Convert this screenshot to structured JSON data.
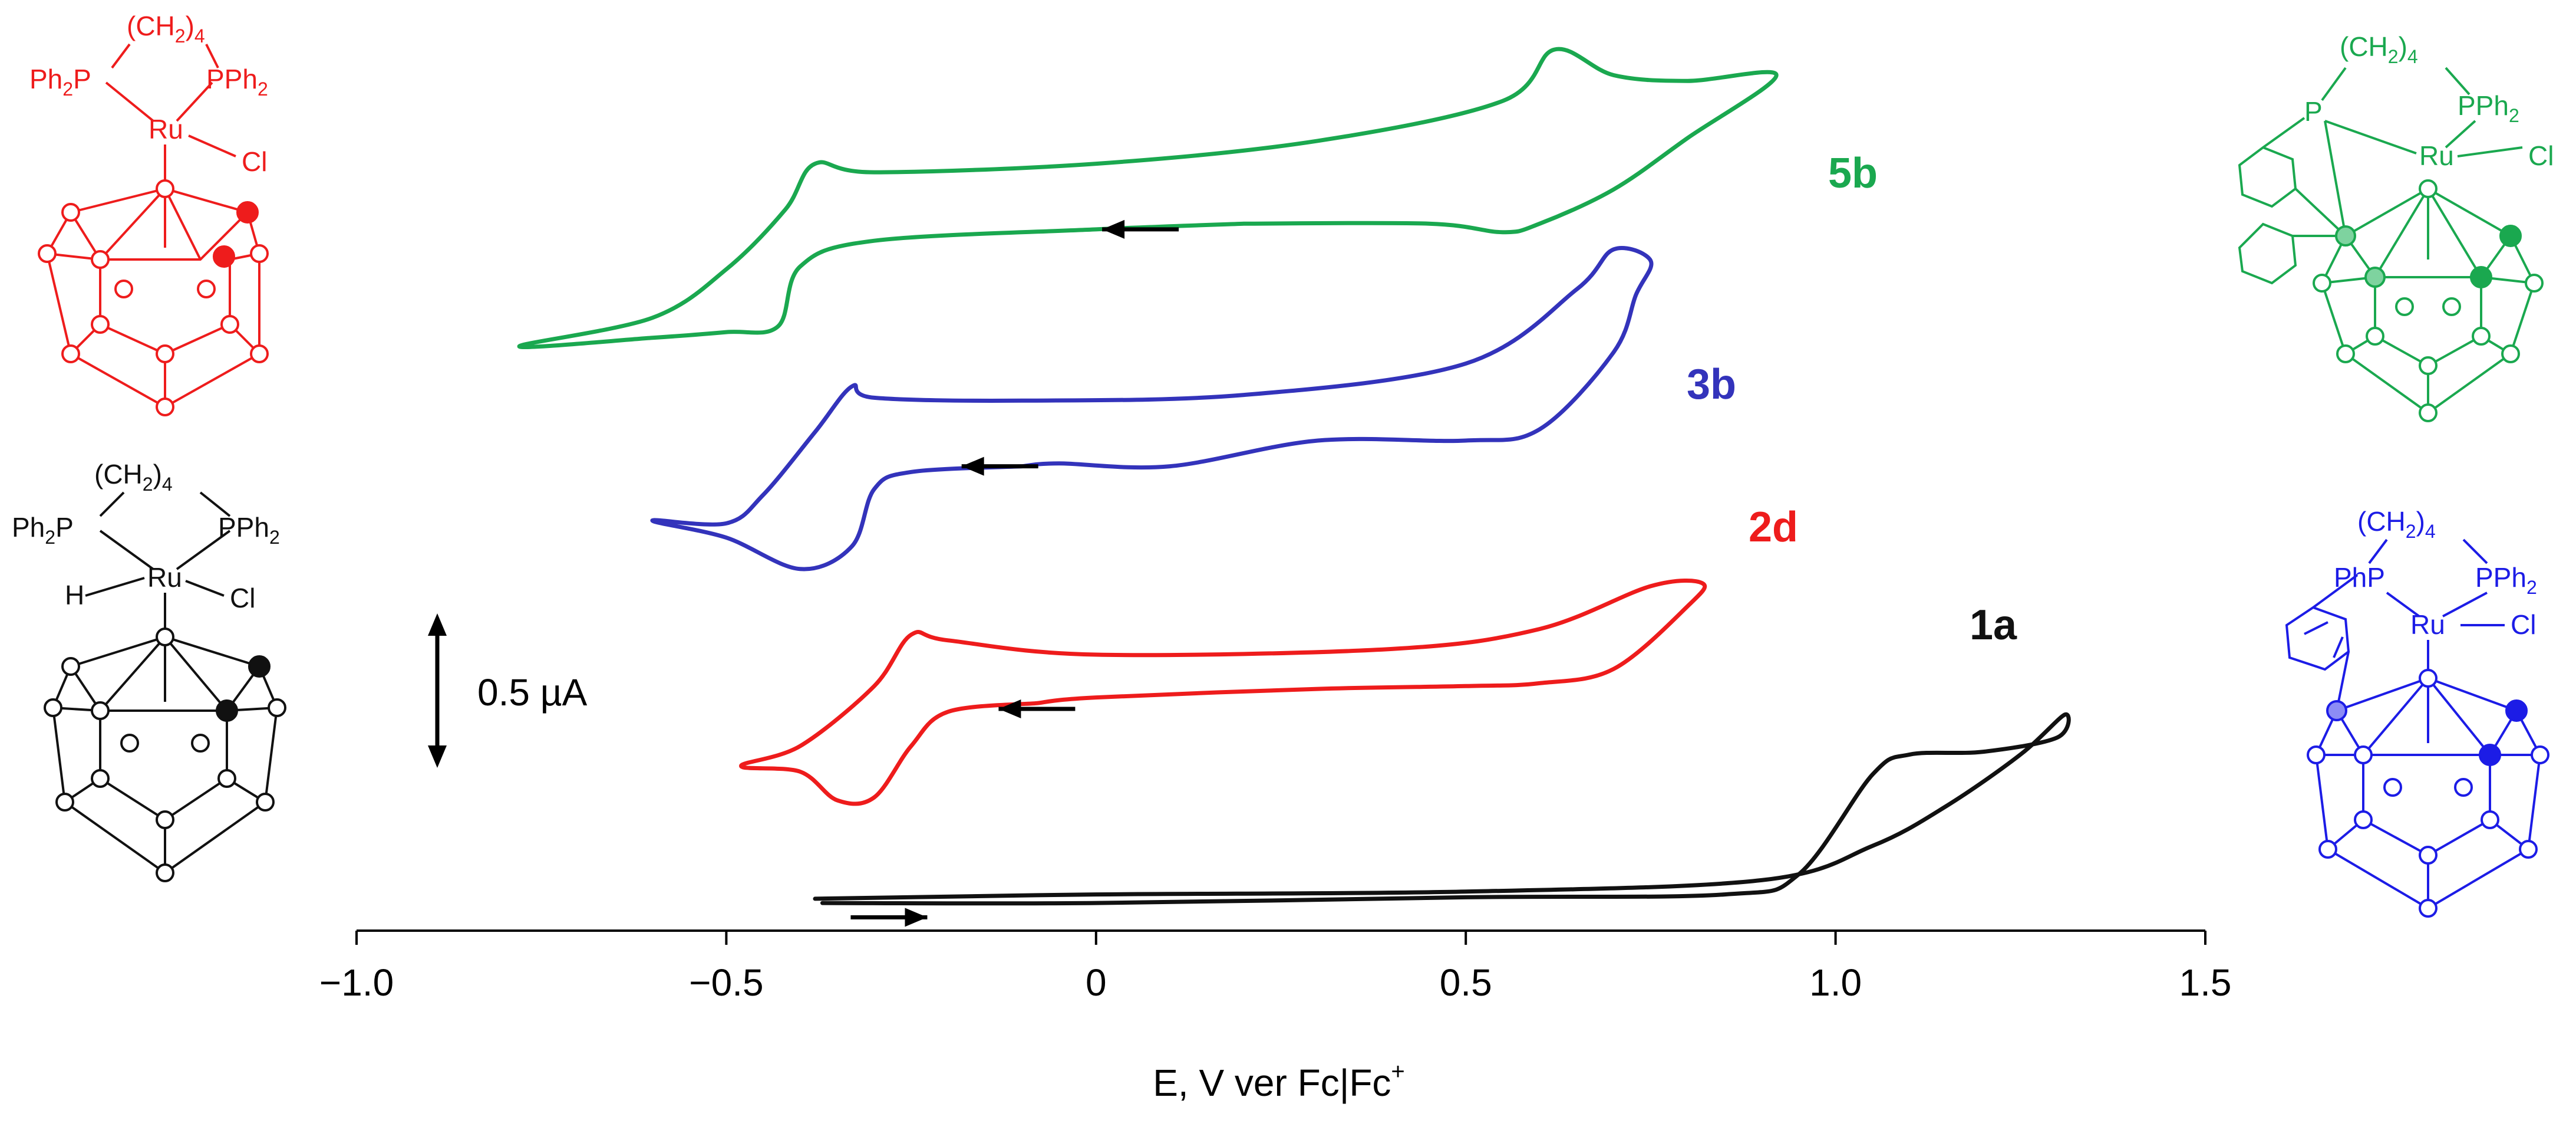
{
  "chart_data": {
    "type": "line",
    "title": "",
    "xlabel": "E, V ver Fc|Fc",
    "xlabel_superscript": "+",
    "ylabel": "",
    "xlim": [
      -1.0,
      1.5
    ],
    "xticks": [
      -1.0,
      -0.5,
      0,
      0.5,
      1.0,
      1.5
    ],
    "xtick_labels": [
      "−1.0",
      "−0.5",
      "0",
      "0.5",
      "1.0",
      "1.5"
    ],
    "scale_bar": {
      "label": "0.5 µA",
      "value_uA": 0.5
    },
    "series": [
      {
        "name": "5b",
        "color": "#1aa84f",
        "offset_uA": 2.2,
        "start_E": 0.2,
        "scan": "cathodic-first",
        "x": [
          0.2,
          0.0,
          -0.3,
          -0.4,
          -0.43,
          -0.5,
          -0.6,
          -0.78,
          -0.6,
          -0.5,
          -0.42,
          -0.38,
          -0.3,
          0.0,
          0.3,
          0.55,
          0.62,
          0.7,
          0.8,
          0.92,
          0.8,
          0.7,
          0.6,
          0.55,
          0.45,
          0.2
        ],
        "y": [
          0.0,
          -0.02,
          -0.06,
          -0.15,
          -0.36,
          -0.38,
          -0.4,
          -0.43,
          -0.33,
          -0.16,
          0.05,
          0.21,
          0.18,
          0.21,
          0.29,
          0.43,
          0.61,
          0.52,
          0.5,
          0.52,
          0.3,
          0.12,
          0.0,
          -0.03,
          0.0,
          0.0
        ]
      },
      {
        "name": "3b",
        "color": "#3333bb",
        "offset_uA": 1.35,
        "start_E": -0.1,
        "scan": "cathodic-first",
        "x": [
          -0.1,
          -0.25,
          -0.3,
          -0.33,
          -0.4,
          -0.5,
          -0.6,
          -0.5,
          -0.45,
          -0.38,
          -0.33,
          -0.3,
          -0.1,
          0.2,
          0.5,
          0.65,
          0.7,
          0.75,
          0.73,
          0.7,
          0.6,
          0.5,
          0.3,
          0.1,
          -0.05,
          -0.1
        ],
        "y": [
          0.0,
          -0.02,
          -0.08,
          -0.28,
          -0.36,
          -0.25,
          -0.19,
          -0.2,
          -0.1,
          0.12,
          0.28,
          0.24,
          0.23,
          0.25,
          0.36,
          0.62,
          0.76,
          0.72,
          0.6,
          0.4,
          0.13,
          0.09,
          0.09,
          0.0,
          0.01,
          0.0
        ]
      },
      {
        "name": "2d",
        "color": "#ee1c1c",
        "offset_uA": 0.52,
        "start_E": -0.08,
        "scan": "cathodic-first",
        "x": [
          -0.08,
          -0.2,
          -0.25,
          -0.3,
          -0.35,
          -0.4,
          -0.48,
          -0.4,
          -0.3,
          -0.25,
          -0.2,
          0.0,
          0.4,
          0.6,
          0.75,
          0.82,
          0.8,
          0.7,
          0.6,
          0.5,
          0.3,
          0.0,
          -0.08
        ],
        "y": [
          0.0,
          -0.03,
          -0.15,
          -0.33,
          -0.34,
          -0.24,
          -0.22,
          -0.15,
          0.06,
          0.24,
          0.22,
          0.17,
          0.19,
          0.26,
          0.41,
          0.42,
          0.34,
          0.12,
          0.07,
          0.06,
          0.05,
          0.02,
          0.0
        ]
      },
      {
        "name": "1a",
        "color": "#111111",
        "offset_uA": -0.18,
        "start_E": -0.37,
        "scan": "anodic-first",
        "x": [
          -0.37,
          0.0,
          0.5,
          0.85,
          0.95,
          1.05,
          1.1,
          1.2,
          1.3,
          1.31,
          1.25,
          1.15,
          1.05,
          0.9,
          0.5,
          0.0,
          -0.38
        ],
        "y": [
          0.0,
          0.0,
          0.02,
          0.03,
          0.1,
          0.45,
          0.52,
          0.53,
          0.58,
          0.66,
          0.52,
          0.34,
          0.2,
          0.08,
          0.04,
          0.03,
          0.015
        ]
      }
    ],
    "direction_arrows": [
      {
        "series": "5b",
        "x": 0.06,
        "y_uA": 2.18,
        "direction": "left"
      },
      {
        "series": "3b",
        "x": -0.13,
        "y_uA": 1.35,
        "direction": "left"
      },
      {
        "series": "2d",
        "x": -0.08,
        "y_uA": 0.5,
        "direction": "left"
      },
      {
        "series": "1a",
        "x": -0.28,
        "y_uA": -0.23,
        "direction": "right"
      }
    ]
  },
  "structures": {
    "red": {
      "color": "#ee1c1c",
      "labels": {
        "ch2": "(CH",
        "ch2sub": "2",
        "ch2close": ")",
        "n": "4",
        "ph2p_a": "Ph",
        "ph2p_b": "2",
        "ph2p_c": "P",
        "pph2_a": "PPh",
        "pph2_b": "2",
        "ru": "Ru",
        "cl": "Cl"
      }
    },
    "black": {
      "color": "#111111",
      "labels": {
        "ch2": "(CH",
        "ch2sub": "2",
        "ch2close": ")",
        "n": "4",
        "ph2p_a": "Ph",
        "ph2p_b": "2",
        "ph2p_c": "P",
        "pph2_a": "PPh",
        "pph2_b": "2",
        "h": "H",
        "ru": "Ru",
        "cl": "Cl"
      }
    },
    "green": {
      "color": "#1aa84f",
      "labels": {
        "ch2": "(CH",
        "ch2sub": "2",
        "ch2close": ")",
        "n": "4",
        "p": "P",
        "pph2_a": "PPh",
        "pph2_b": "2",
        "ru": "Ru",
        "cl": "Cl"
      }
    },
    "blue": {
      "color": "#1c1ce6",
      "labels": {
        "ch2": "(CH",
        "ch2sub": "2",
        "ch2close": ")",
        "n": "4",
        "php": "PhP",
        "pph2_a": "PPh",
        "pph2_b": "2",
        "ru": "Ru",
        "cl": "Cl"
      }
    }
  }
}
